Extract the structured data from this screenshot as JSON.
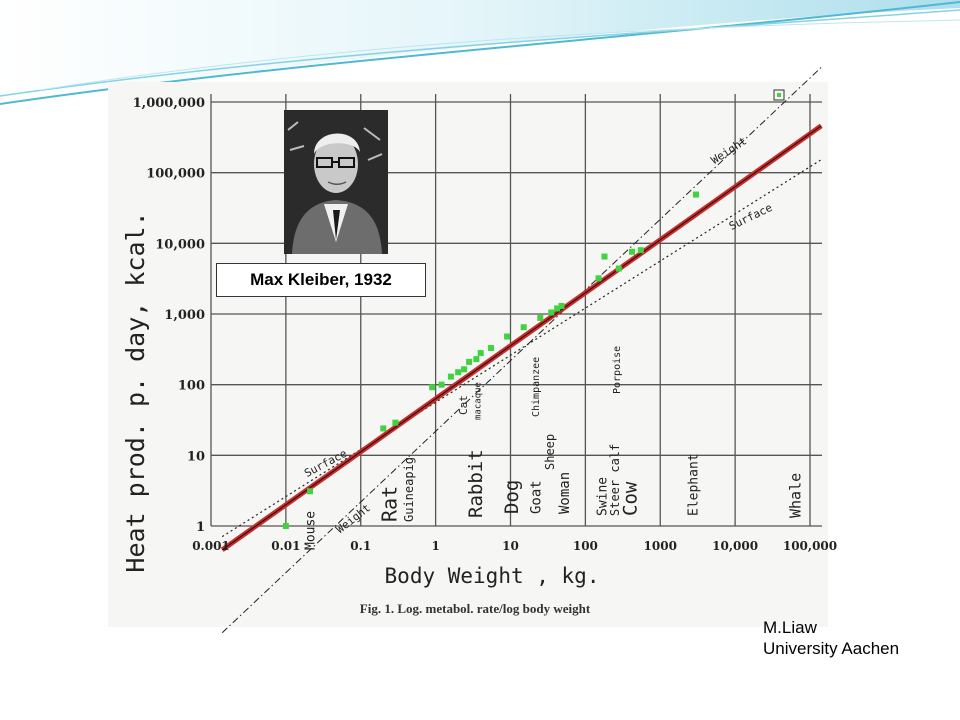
{
  "slide": {
    "portrait_caption": "Max Kleiber, 1932",
    "credit_name": "M.Liaw",
    "credit_affiliation": "University Aachen"
  },
  "chart_data": {
    "type": "scatter",
    "title": "",
    "caption": "Fig. 1. Log. metabol. rate/log body weight",
    "xlabel": "Body Weight , kg.",
    "ylabel": "Heat prod. p. day, kcal.",
    "xscale": "log",
    "yscale": "log",
    "xlim": [
      0.001,
      100000
    ],
    "ylim": [
      1,
      1000000
    ],
    "x_tick_values": [
      0.001,
      0.01,
      0.1,
      1,
      10,
      100,
      1000,
      10000,
      100000
    ],
    "x_tick_labels": [
      "0.001",
      "0.01",
      "0.1",
      "1",
      "10",
      "100",
      "1000",
      "10,000",
      "100,000"
    ],
    "y_tick_values": [
      1,
      10,
      100,
      1000,
      10000,
      100000,
      1000000
    ],
    "y_tick_labels": [
      "1",
      "10",
      "100",
      "1,000",
      "10,000",
      "100,000",
      "1,000,000"
    ],
    "grid": true,
    "colors": {
      "fit_line": "#cc2a2a",
      "points": "#3fd33f"
    },
    "lines": [
      {
        "name": "Weight",
        "slope": 1.0,
        "intercept_log10": 1.34,
        "style": "dash-dot"
      },
      {
        "name": "Surface",
        "slope": 0.6667,
        "intercept_log10": 1.75,
        "style": "dotted"
      },
      {
        "name": "",
        "slope": 0.75,
        "intercept_log10": 1.8,
        "style": "solid-red"
      }
    ],
    "points": {
      "x": [
        0.01,
        0.021,
        0.2,
        0.29,
        0.9,
        1.2,
        1.6,
        2.0,
        2.4,
        2.8,
        3.5,
        4.0,
        5.5,
        9.0,
        15,
        25,
        35,
        42,
        48,
        150,
        180,
        280,
        420,
        550,
        3000
      ],
      "y": [
        1,
        3.1,
        24,
        29,
        92,
        100,
        130,
        150,
        165,
        210,
        230,
        280,
        330,
        480,
        650,
        880,
        1050,
        1200,
        1300,
        3200,
        6500,
        4400,
        7600,
        8000,
        49000
      ]
    },
    "animal_labels": [
      "Mouse",
      "Rat",
      "Guineapig",
      "Rabbit",
      "Cat",
      "macaque",
      "Dog",
      "Goat",
      "Sheep",
      "Woman",
      "Chimpanzee",
      "Swine",
      "Steer calf",
      "Porpoise",
      "Cow",
      "Elephant",
      "Whale"
    ],
    "line_labels": [
      "Weight",
      "Surface",
      "Surface",
      "Weight"
    ]
  }
}
